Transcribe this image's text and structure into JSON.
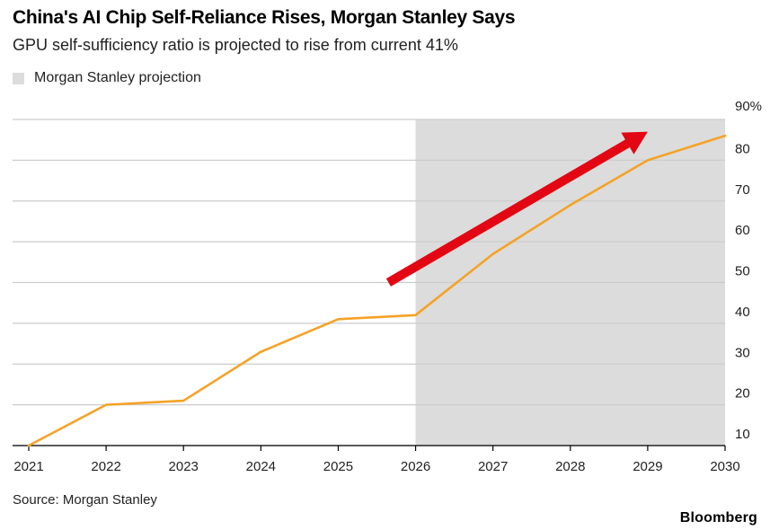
{
  "title": "China's AI Chip Self-Reliance Rises, Morgan Stanley Says",
  "subtitle": "GPU self-sufficiency ratio is projected to rise from current 41%",
  "legend": {
    "label": "Morgan Stanley projection",
    "color": "#dcdcdc"
  },
  "source": "Source: Morgan Stanley",
  "brand": "Bloomberg",
  "colors": {
    "line": "#f5a226",
    "arrow": "#e30613",
    "grid": "#cccccc",
    "shade": "#dcdcdc"
  },
  "chart_data": {
    "type": "line",
    "x": [
      2021,
      2022,
      2023,
      2024,
      2025,
      2026,
      2027,
      2028,
      2029,
      2030
    ],
    "x_tick_labels": [
      "2021",
      "2022",
      "2023",
      "2024",
      "2025",
      "2026",
      "2027",
      "2028",
      "2029",
      "2030"
    ],
    "series": [
      {
        "values": [
          10,
          20,
          21,
          33,
          41,
          42,
          57,
          69,
          80,
          86
        ]
      }
    ],
    "ylim": [
      10,
      90
    ],
    "y_ticks": [
      10,
      20,
      30,
      40,
      50,
      60,
      70,
      80,
      90
    ],
    "y_tick_labels": [
      "10",
      "20",
      "30",
      "40",
      "50",
      "60",
      "70",
      "80",
      "90%"
    ],
    "shaded_region": {
      "x_start": 2026,
      "x_end": 2030,
      "label": "Morgan Stanley projection"
    },
    "annotation": {
      "type": "arrow",
      "description": "upward trend arrow",
      "from": [
        2025.65,
        50
      ],
      "to": [
        2029,
        87
      ]
    },
    "grid": true,
    "y_axis_position": "right",
    "legend_position": "top-left"
  }
}
